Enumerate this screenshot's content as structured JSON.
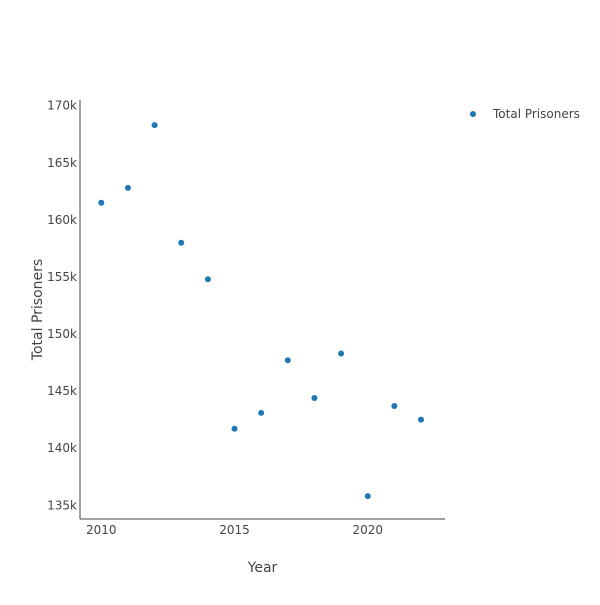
{
  "chart_data": {
    "type": "scatter",
    "title": "",
    "xlabel": "Year",
    "ylabel": "Total Prisoners",
    "xlim": [
      2009.2,
      2022.9
    ],
    "ylim": [
      133800,
      170500
    ],
    "x_ticks": [
      2010,
      2015,
      2020
    ],
    "y_ticks": [
      135000,
      140000,
      145000,
      150000,
      155000,
      160000,
      165000,
      170000
    ],
    "x_tick_labels": [
      "2010",
      "2015",
      "2020"
    ],
    "y_tick_labels": [
      "135k",
      "140k",
      "145k",
      "150k",
      "155k",
      "160k",
      "165k",
      "170k"
    ],
    "grid": false,
    "legend_position": "top-right",
    "series": [
      {
        "name": "Total Prisoners",
        "color": "#1f77b4",
        "x": [
          2010,
          2011,
          2012,
          2013,
          2014,
          2015,
          2016,
          2017,
          2018,
          2019,
          2020,
          2021,
          2022
        ],
        "y": [
          161500,
          162800,
          168300,
          158000,
          154800,
          141700,
          143100,
          147700,
          144400,
          148300,
          135800,
          143700,
          142500
        ]
      }
    ]
  }
}
